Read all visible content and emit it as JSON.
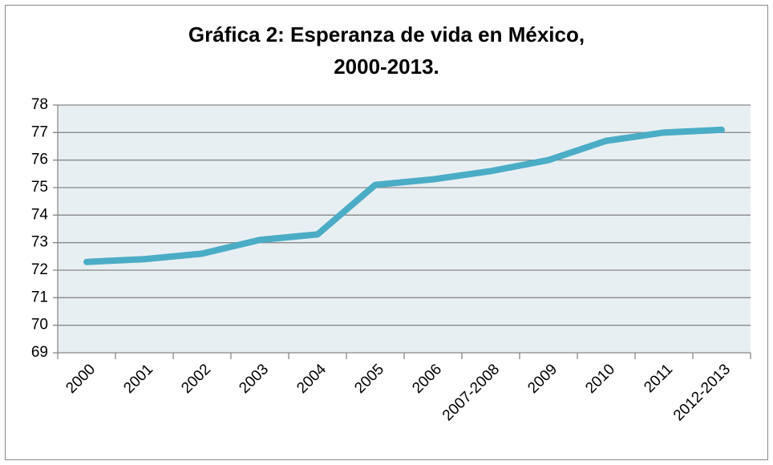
{
  "chart_data": {
    "type": "line",
    "title": [
      "Gráfica 2: Esperanza de vida en México,",
      "2000-2013."
    ],
    "categories": [
      "2000",
      "2001",
      "2002",
      "2003",
      "2004",
      "2005",
      "2006",
      "2007-2008",
      "2009",
      "2010",
      "2011",
      "2012-2013"
    ],
    "values": [
      72.3,
      72.4,
      72.6,
      73.1,
      73.3,
      75.1,
      75.3,
      75.6,
      76.0,
      76.7,
      77.0,
      77.1
    ],
    "color": "#4bacc6",
    "ylim": [
      69,
      78
    ],
    "yticks": [
      69,
      70,
      71,
      72,
      73,
      74,
      75,
      76,
      77,
      78
    ],
    "grid": true
  }
}
